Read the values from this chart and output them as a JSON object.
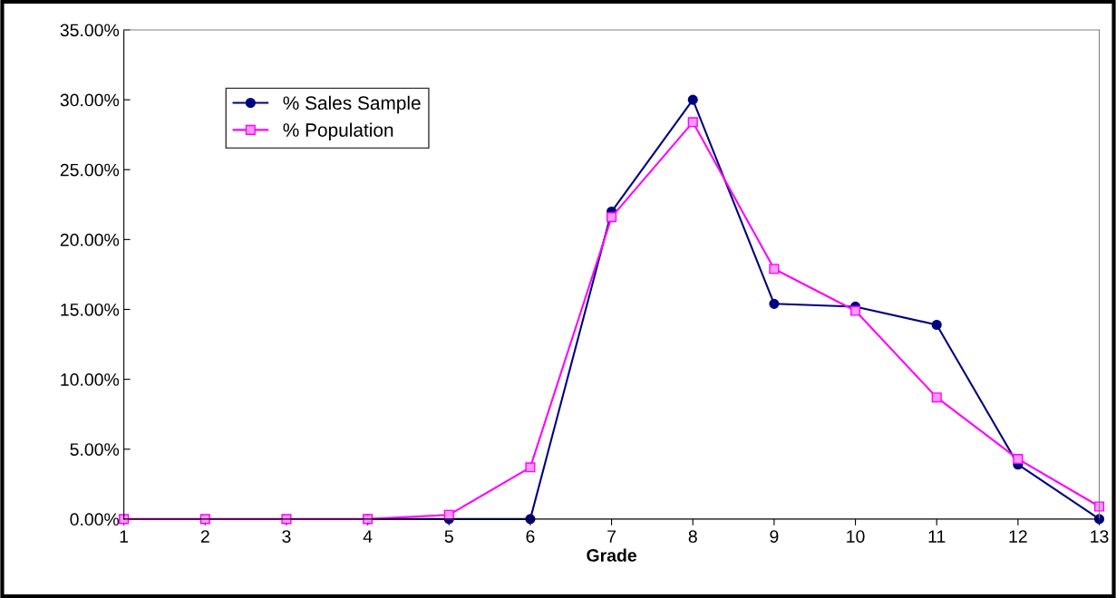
{
  "chart_data": {
    "type": "line",
    "xlabel": "Grade",
    "categories": [
      "1",
      "2",
      "3",
      "4",
      "5",
      "6",
      "7",
      "8",
      "9",
      "10",
      "11",
      "12",
      "13"
    ],
    "series": [
      {
        "name": "% Sales Sample",
        "color": "#000080",
        "marker": "circle",
        "values": [
          null,
          null,
          null,
          0,
          0,
          0,
          22.0,
          30.0,
          15.4,
          15.2,
          13.9,
          3.9,
          0
        ]
      },
      {
        "name": "% Population",
        "color": "#ff00ff",
        "marker": "square",
        "values": [
          0,
          0,
          0,
          0,
          0.3,
          3.7,
          21.6,
          28.4,
          17.9,
          14.9,
          8.7,
          4.3,
          0.9
        ]
      }
    ],
    "ylim": [
      0,
      35
    ],
    "yticks": [
      {
        "value": 0,
        "label": "0.00%"
      },
      {
        "value": 5,
        "label": "5.00%"
      },
      {
        "value": 10,
        "label": "10.00%"
      },
      {
        "value": 15,
        "label": "15.00%"
      },
      {
        "value": 20,
        "label": "20.00%"
      },
      {
        "value": 25,
        "label": "25.00%"
      },
      {
        "value": 30,
        "label": "30.00%"
      },
      {
        "value": 35,
        "label": "35.00%"
      }
    ],
    "grid": false,
    "legend": "top left",
    "line_style": "solid"
  }
}
